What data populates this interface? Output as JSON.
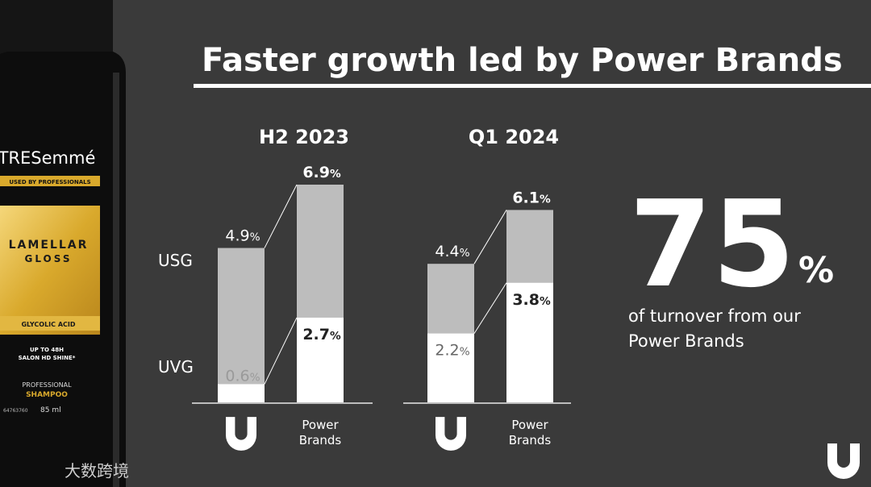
{
  "title": "Faster growth led by Power Brands",
  "chart_data": [
    {
      "type": "bar",
      "title": "H2 2023",
      "categories": [
        null,
        "Power Brands"
      ],
      "series": [
        {
          "name": "USG",
          "color": "#bdbdbd",
          "values": [
            4.9,
            6.9
          ],
          "value_labels": [
            "4.9%",
            "6.9%"
          ]
        },
        {
          "name": "UVG",
          "color": "#ffffff",
          "values": [
            0.6,
            2.7
          ],
          "value_labels": [
            "0.6%",
            "2.7%"
          ]
        }
      ]
    },
    {
      "type": "bar",
      "title": "Q1 2024",
      "categories": [
        null,
        "Power Brands"
      ],
      "series": [
        {
          "color": "#bdbdbd",
          "values": [
            4.4,
            6.1
          ],
          "value_labels": [
            "4.4%",
            "6.1%"
          ]
        },
        {
          "color": "#ffffff",
          "values": [
            2.2,
            3.8
          ],
          "value_labels": [
            "2.2%",
            "3.8%"
          ]
        }
      ]
    }
  ],
  "stat": {
    "value_label": "75%",
    "caption": [
      "of turnover from our",
      "Power Brands"
    ]
  },
  "product": {
    "brand": "TRESemmé",
    "tagline": "USED BY PROFESSIONALS",
    "line1": "LAMELLAR",
    "line2": "GLOSS",
    "ingredient": "GLYCOLIC ACID",
    "claim1": "UP TO 48H",
    "claim2": "SALON HD SHINE*",
    "kind1": "PROFESSIONAL",
    "kind2": "SHAMPOO",
    "code": "64763760",
    "size": "85 ml"
  },
  "watermark": "大数跨境"
}
